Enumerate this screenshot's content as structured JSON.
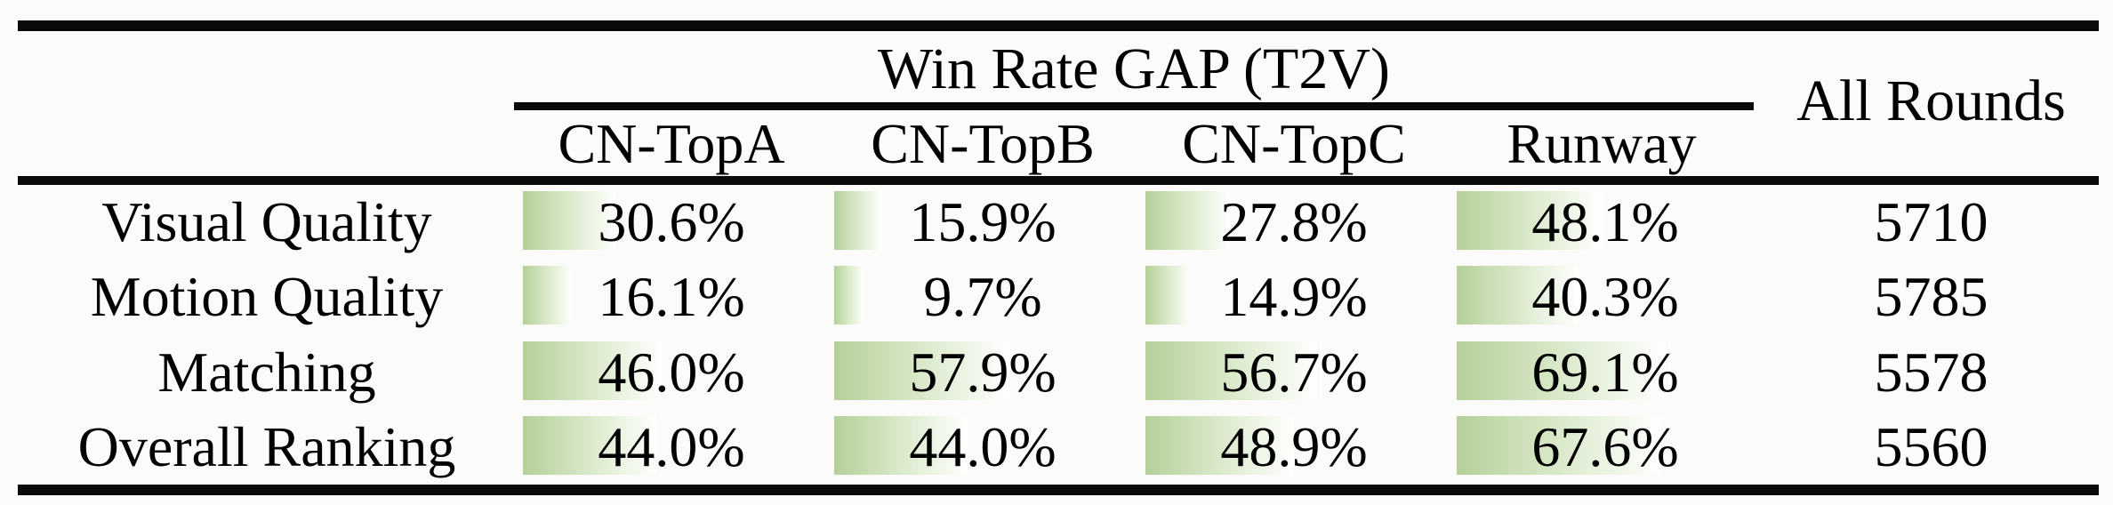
{
  "table": {
    "span_header": "Win Rate GAP (T2V)",
    "all_rounds_header": "All Rounds",
    "columns": [
      "CN-TopA",
      "CN-TopB",
      "CN-TopC",
      "Runway"
    ],
    "rows": [
      {
        "label": "Visual Quality",
        "cells": [
          {
            "pct": 30.6,
            "text": "30.6%"
          },
          {
            "pct": 15.9,
            "text": "15.9%"
          },
          {
            "pct": 27.8,
            "text": "27.8%"
          },
          {
            "pct": 48.1,
            "text": "48.1%"
          }
        ],
        "all_rounds": "5710"
      },
      {
        "label": "Motion Quality",
        "cells": [
          {
            "pct": 16.1,
            "text": "16.1%"
          },
          {
            "pct": 9.7,
            "text": "9.7%"
          },
          {
            "pct": 14.9,
            "text": "14.9%"
          },
          {
            "pct": 40.3,
            "text": "40.3%"
          }
        ],
        "all_rounds": "5785"
      },
      {
        "label": "Matching",
        "cells": [
          {
            "pct": 46.0,
            "text": "46.0%"
          },
          {
            "pct": 57.9,
            "text": "57.9%"
          },
          {
            "pct": 56.7,
            "text": "56.7%"
          },
          {
            "pct": 69.1,
            "text": "69.1%"
          }
        ],
        "all_rounds": "5578"
      },
      {
        "label": "Overall Ranking",
        "cells": [
          {
            "pct": 44.0,
            "text": "44.0%"
          },
          {
            "pct": 44.0,
            "text": "44.0%"
          },
          {
            "pct": 48.9,
            "text": "48.9%"
          },
          {
            "pct": 67.6,
            "text": "67.6%"
          }
        ],
        "all_rounds": "5560"
      }
    ]
  },
  "colors": {
    "bar_green": "#b4d099",
    "bar_fade": "#ffffff",
    "rule": "#0a0a0a",
    "text": "#000000",
    "background": "#fbfbfa"
  },
  "chart_data": {
    "type": "table",
    "title": "Win Rate GAP (T2V)",
    "columns": [
      "CN-TopA",
      "CN-TopB",
      "CN-TopC",
      "Runway",
      "All Rounds"
    ],
    "rows": [
      "Visual Quality",
      "Motion Quality",
      "Matching",
      "Overall Ranking"
    ],
    "win_rate_gap_percent": [
      [
        30.6,
        15.9,
        27.8,
        48.1
      ],
      [
        16.1,
        9.7,
        14.9,
        40.3
      ],
      [
        46.0,
        57.9,
        56.7,
        69.1
      ],
      [
        44.0,
        44.0,
        48.9,
        67.6
      ]
    ],
    "all_rounds": [
      5710,
      5785,
      5578,
      5560
    ],
    "bar_scale": "cell background data-bar, width proportional to percent, green-to-white gradient, 100% = 340px"
  }
}
